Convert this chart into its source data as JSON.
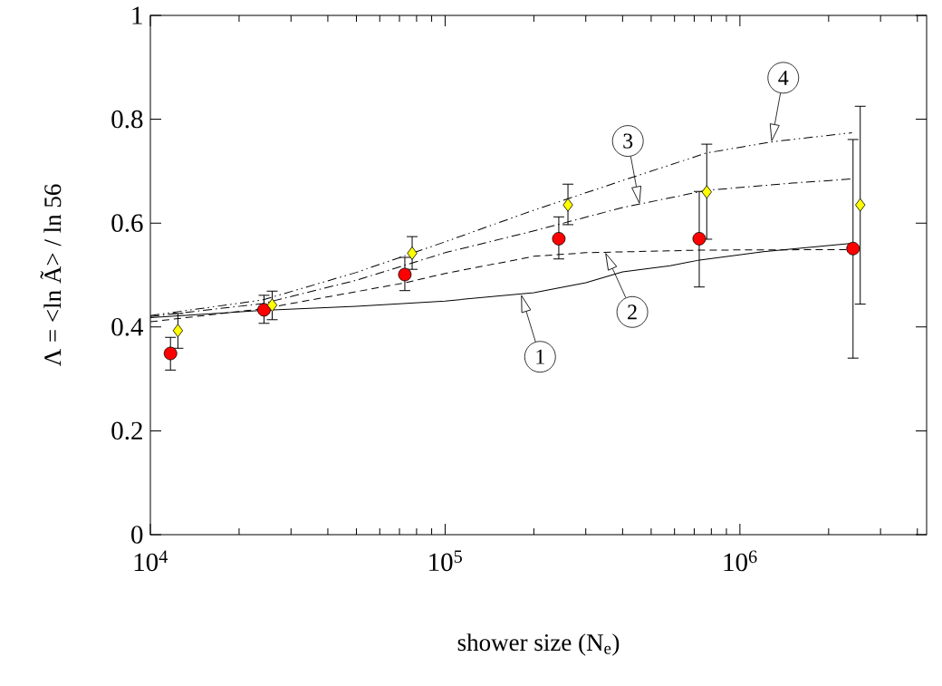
{
  "chart_data": {
    "type": "scatter",
    "xlabel": "shower size  (N$_{e}$)",
    "ylabel": "Λ = <ln Ã> / ln 56",
    "log": "x",
    "grid": false,
    "xlim": [
      10000,
      4300000
    ],
    "ylim": [
      0,
      1
    ],
    "xticks": [
      {
        "value": 10000,
        "label": "10$^{4}$"
      },
      {
        "value": 20000,
        "label": null
      },
      {
        "value": 30000,
        "label": null
      },
      {
        "value": 40000,
        "label": null
      },
      {
        "value": 50000,
        "label": null
      },
      {
        "value": 60000,
        "label": null
      },
      {
        "value": 70000,
        "label": null
      },
      {
        "value": 80000,
        "label": null
      },
      {
        "value": 90000,
        "label": null
      },
      {
        "value": 100000,
        "label": "10$^{5}$"
      },
      {
        "value": 200000,
        "label": null
      },
      {
        "value": 300000,
        "label": null
      },
      {
        "value": 400000,
        "label": null
      },
      {
        "value": 500000,
        "label": null
      },
      {
        "value": 600000,
        "label": null
      },
      {
        "value": 700000,
        "label": null
      },
      {
        "value": 800000,
        "label": null
      },
      {
        "value": 900000,
        "label": null
      },
      {
        "value": 1000000,
        "label": "10$^{6}$"
      },
      {
        "value": 2000000,
        "label": null
      },
      {
        "value": 3000000,
        "label": null
      },
      {
        "value": 4000000,
        "label": null
      }
    ],
    "yticks": [
      0,
      0.2,
      0.4,
      0.6,
      0.8,
      1
    ],
    "series": [
      {
        "type": "line",
        "color": "#000000",
        "line_style": "solid",
        "marker": "none",
        "x": [
          10000,
          24000,
          50000,
          100000,
          200000,
          300000,
          400000,
          580000,
          730000,
          1200000,
          2400000
        ],
        "values": [
          0.418,
          0.432,
          0.44,
          0.45,
          0.466,
          0.485,
          0.506,
          0.518,
          0.529,
          0.545,
          0.561
        ]
      },
      {
        "type": "line",
        "color": "#000000",
        "line_style": "dashed",
        "marker": "none",
        "x": [
          10000,
          24000,
          73000,
          100000,
          200000,
          300000,
          730000,
          2400000
        ],
        "values": [
          0.41,
          0.435,
          0.485,
          0.503,
          0.536,
          0.543,
          0.548,
          0.549
        ]
      },
      {
        "type": "line",
        "color": "#000000",
        "line_style": "dashdot",
        "marker": "none",
        "x": [
          10000,
          24000,
          50000,
          100000,
          200000,
          400000,
          770000,
          1500000,
          2400000
        ],
        "values": [
          0.42,
          0.445,
          0.49,
          0.543,
          0.585,
          0.63,
          0.663,
          0.677,
          0.685
        ]
      },
      {
        "type": "line",
        "color": "#000000",
        "line_style": "dashdotdot",
        "marker": "none",
        "x": [
          10000,
          24000,
          50000,
          100000,
          200000,
          400000,
          770000,
          1300000,
          2400000
        ],
        "values": [
          0.422,
          0.452,
          0.505,
          0.564,
          0.625,
          0.682,
          0.735,
          0.757,
          0.774
        ]
      },
      {
        "type": "scatter",
        "color": "#ff0000",
        "marker": "circle",
        "x": [
          11700,
          24300,
          73000,
          243000,
          728000,
          2420000
        ],
        "values": [
          0.349,
          0.433,
          0.501,
          0.57,
          0.57,
          0.551
        ],
        "errors": [
          [
            0.317,
            0.38
          ],
          [
            0.407,
            0.461
          ],
          [
            0.47,
            0.534
          ],
          [
            0.531,
            0.612
          ],
          [
            0.477,
            0.661
          ],
          [
            0.34,
            0.761
          ]
        ]
      },
      {
        "type": "scatter",
        "color": "#ffff00",
        "marker": "diamond",
        "x": [
          12400,
          25900,
          77300,
          261000,
          772000,
          2560000
        ],
        "values": [
          0.393,
          0.442,
          0.542,
          0.635,
          0.66,
          0.635
        ],
        "errors": [
          [
            0.359,
            0.426
          ],
          [
            0.414,
            0.469
          ],
          [
            0.511,
            0.574
          ],
          [
            0.597,
            0.675
          ],
          [
            0.569,
            0.752
          ],
          [
            0.444,
            0.825
          ]
        ]
      }
    ],
    "annotations": [
      {
        "text": "1",
        "x": 181000,
        "y": 0.463
      },
      {
        "text": "2",
        "x": 349000,
        "y": 0.544
      },
      {
        "text": "3",
        "x": 457000,
        "y": 0.636
      },
      {
        "text": "4",
        "x": 1280000,
        "y": 0.756
      }
    ]
  }
}
